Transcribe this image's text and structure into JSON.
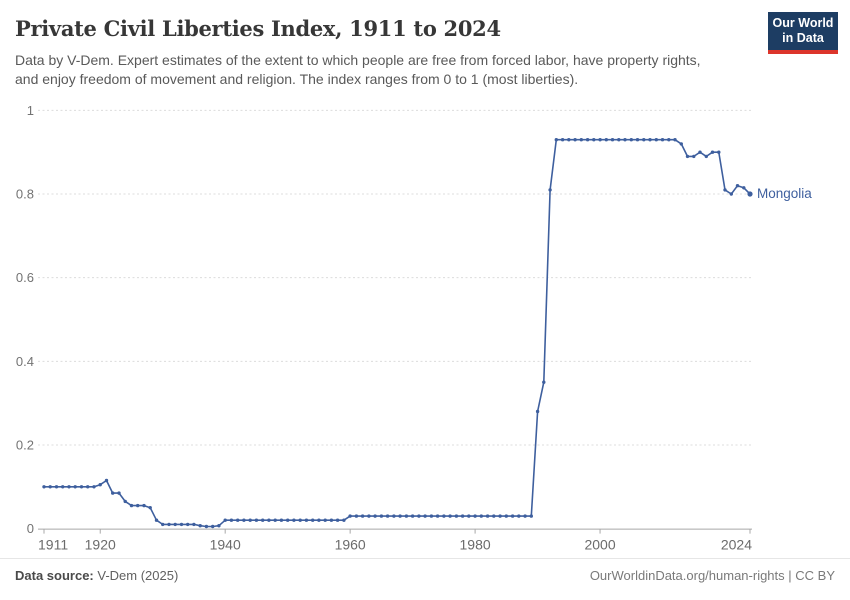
{
  "header": {
    "title": "Private Civil Liberties Index, 1911 to 2024",
    "subtitle_lines": [
      "Data by V-Dem. Expert estimates of the extent to which people are free from forced labor, have property rights,",
      "and enjoy freedom of movement and religion. The index ranges from 0 to 1 (most liberties)."
    ],
    "logo": {
      "line1": "Our World",
      "line2": "in Data"
    }
  },
  "chart_data": {
    "type": "line",
    "title": "Private Civil Liberties Index, 1911 to 2024",
    "xlabel": "",
    "ylabel": "",
    "xlim": [
      1911,
      2024
    ],
    "ylim": [
      0,
      1
    ],
    "grid": "horizontal-dashed",
    "legend_position": "end-of-line-label",
    "x_start": 1911,
    "x_step": 1,
    "x_end": 2024,
    "yticks": [
      {
        "value": 1,
        "label": "1"
      },
      {
        "value": 0.8,
        "label": "0.8"
      },
      {
        "value": 0.6,
        "label": "0.6"
      },
      {
        "value": 0.4,
        "label": "0.4"
      },
      {
        "value": 0.2,
        "label": "0.2"
      },
      {
        "value": 0,
        "label": "0"
      }
    ],
    "xticks": [
      {
        "value": 1911,
        "label": "1911"
      },
      {
        "value": 1920,
        "label": "1920"
      },
      {
        "value": 1940,
        "label": "1940"
      },
      {
        "value": 1960,
        "label": "1960"
      },
      {
        "value": 1980,
        "label": "1980"
      },
      {
        "value": 2000,
        "label": "2000"
      },
      {
        "value": 2024,
        "label": "2024"
      }
    ],
    "series": [
      {
        "name": "Mongolia",
        "color": "#3e5f9e",
        "values": [
          0.1,
          0.1,
          0.1,
          0.1,
          0.1,
          0.1,
          0.1,
          0.1,
          0.1,
          0.105,
          0.115,
          0.085,
          0.085,
          0.065,
          0.055,
          0.055,
          0.055,
          0.05,
          0.02,
          0.01,
          0.01,
          0.01,
          0.01,
          0.01,
          0.01,
          0.007,
          0.005,
          0.005,
          0.007,
          0.02,
          0.02,
          0.02,
          0.02,
          0.02,
          0.02,
          0.02,
          0.02,
          0.02,
          0.02,
          0.02,
          0.02,
          0.02,
          0.02,
          0.02,
          0.02,
          0.02,
          0.02,
          0.02,
          0.02,
          0.03,
          0.03,
          0.03,
          0.03,
          0.03,
          0.03,
          0.03,
          0.03,
          0.03,
          0.03,
          0.03,
          0.03,
          0.03,
          0.03,
          0.03,
          0.03,
          0.03,
          0.03,
          0.03,
          0.03,
          0.03,
          0.03,
          0.03,
          0.03,
          0.03,
          0.03,
          0.03,
          0.03,
          0.03,
          0.03,
          0.28,
          0.35,
          0.81,
          0.93,
          0.93,
          0.93,
          0.93,
          0.93,
          0.93,
          0.93,
          0.93,
          0.93,
          0.93,
          0.93,
          0.93,
          0.93,
          0.93,
          0.93,
          0.93,
          0.93,
          0.93,
          0.93,
          0.93,
          0.92,
          0.89,
          0.89,
          0.9,
          0.89,
          0.9,
          0.9,
          0.81,
          0.8,
          0.82,
          0.815,
          0.8
        ]
      }
    ]
  },
  "footer": {
    "source_label": "Data source:",
    "source_value": " V-Dem (2025)",
    "url": "OurWorldinData.org/human-rights",
    "separator": " | ",
    "license": "CC BY"
  },
  "colors": {
    "line": "#3e5f9e",
    "gridline": "#dcdcdc",
    "axis": "#a8a8a8",
    "logo_bg": "#1d3d63",
    "logo_red": "#dc352b"
  }
}
